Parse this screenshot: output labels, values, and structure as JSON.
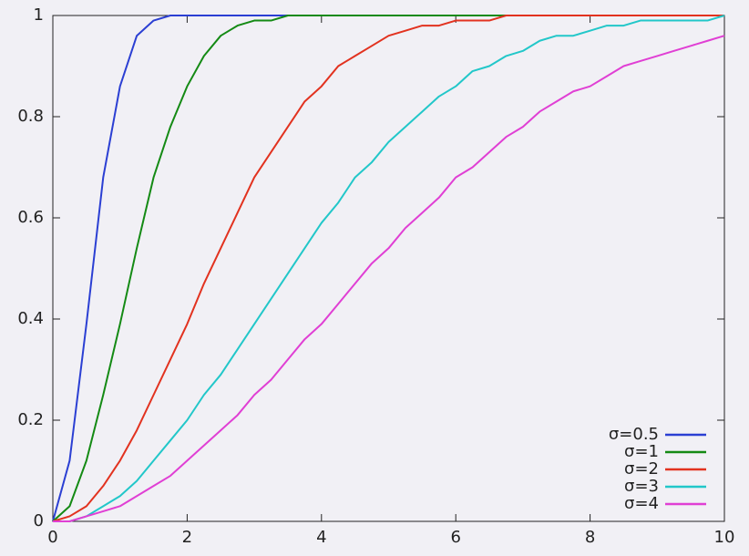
{
  "chart_data": {
    "type": "line",
    "x": [
      0,
      0.25,
      0.5,
      0.75,
      1,
      1.25,
      1.5,
      1.75,
      2,
      2.25,
      2.5,
      2.75,
      3,
      3.25,
      3.5,
      3.75,
      4,
      4.25,
      4.5,
      4.75,
      5,
      5.25,
      5.5,
      5.75,
      6,
      6.25,
      6.5,
      6.75,
      7,
      7.25,
      7.5,
      7.75,
      8,
      8.25,
      8.5,
      8.75,
      9,
      9.25,
      9.5,
      9.75,
      10
    ],
    "series": [
      {
        "name": "σ=0.5",
        "color": "#2b3fd3",
        "values": [
          0,
          0.12,
          0.39,
          0.68,
          0.86,
          0.96,
          0.99,
          1,
          1,
          1,
          1,
          1,
          1,
          1,
          1,
          1,
          1,
          1,
          1,
          1,
          1,
          1,
          1,
          1,
          1,
          1,
          1,
          1,
          1,
          1,
          1,
          1,
          1,
          1,
          1,
          1,
          1,
          1,
          1,
          1,
          1
        ]
      },
      {
        "name": "σ=1",
        "color": "#148a14",
        "values": [
          0,
          0.03,
          0.12,
          0.25,
          0.39,
          0.54,
          0.68,
          0.78,
          0.86,
          0.92,
          0.96,
          0.98,
          0.99,
          0.99,
          1,
          1,
          1,
          1,
          1,
          1,
          1,
          1,
          1,
          1,
          1,
          1,
          1,
          1,
          1,
          1,
          1,
          1,
          1,
          1,
          1,
          1,
          1,
          1,
          1,
          1,
          1
        ]
      },
      {
        "name": "σ=2",
        "color": "#e2321f",
        "values": [
          0,
          0.01,
          0.03,
          0.07,
          0.12,
          0.18,
          0.25,
          0.32,
          0.39,
          0.47,
          0.54,
          0.61,
          0.68,
          0.73,
          0.78,
          0.83,
          0.86,
          0.9,
          0.92,
          0.94,
          0.96,
          0.97,
          0.98,
          0.98,
          0.99,
          0.99,
          0.99,
          1,
          1,
          1,
          1,
          1,
          1,
          1,
          1,
          1,
          1,
          1,
          1,
          1,
          1
        ]
      },
      {
        "name": "σ=3",
        "color": "#22c7c9",
        "values": [
          0,
          0,
          0.01,
          0.03,
          0.05,
          0.08,
          0.12,
          0.16,
          0.2,
          0.25,
          0.29,
          0.34,
          0.39,
          0.44,
          0.49,
          0.54,
          0.59,
          0.63,
          0.68,
          0.71,
          0.75,
          0.78,
          0.81,
          0.84,
          0.86,
          0.89,
          0.9,
          0.92,
          0.93,
          0.95,
          0.96,
          0.96,
          0.97,
          0.98,
          0.98,
          0.99,
          0.99,
          0.99,
          0.99,
          0.99,
          1
        ]
      },
      {
        "name": "σ=4",
        "color": "#e03fd4",
        "values": [
          0,
          0,
          0.01,
          0.02,
          0.03,
          0.05,
          0.07,
          0.09,
          0.12,
          0.15,
          0.18,
          0.21,
          0.25,
          0.28,
          0.32,
          0.36,
          0.39,
          0.43,
          0.47,
          0.51,
          0.54,
          0.58,
          0.61,
          0.64,
          0.68,
          0.7,
          0.73,
          0.76,
          0.78,
          0.81,
          0.83,
          0.85,
          0.86,
          0.88,
          0.9,
          0.91,
          0.92,
          0.93,
          0.94,
          0.95,
          0.96
        ]
      }
    ],
    "xlim": [
      0,
      10
    ],
    "xticks": [
      0,
      2,
      4,
      6,
      8,
      10
    ],
    "ylim": [
      0,
      1
    ],
    "yticks": [
      0,
      0.2,
      0.4,
      0.6,
      0.8,
      1
    ],
    "legend": "lower right"
  }
}
